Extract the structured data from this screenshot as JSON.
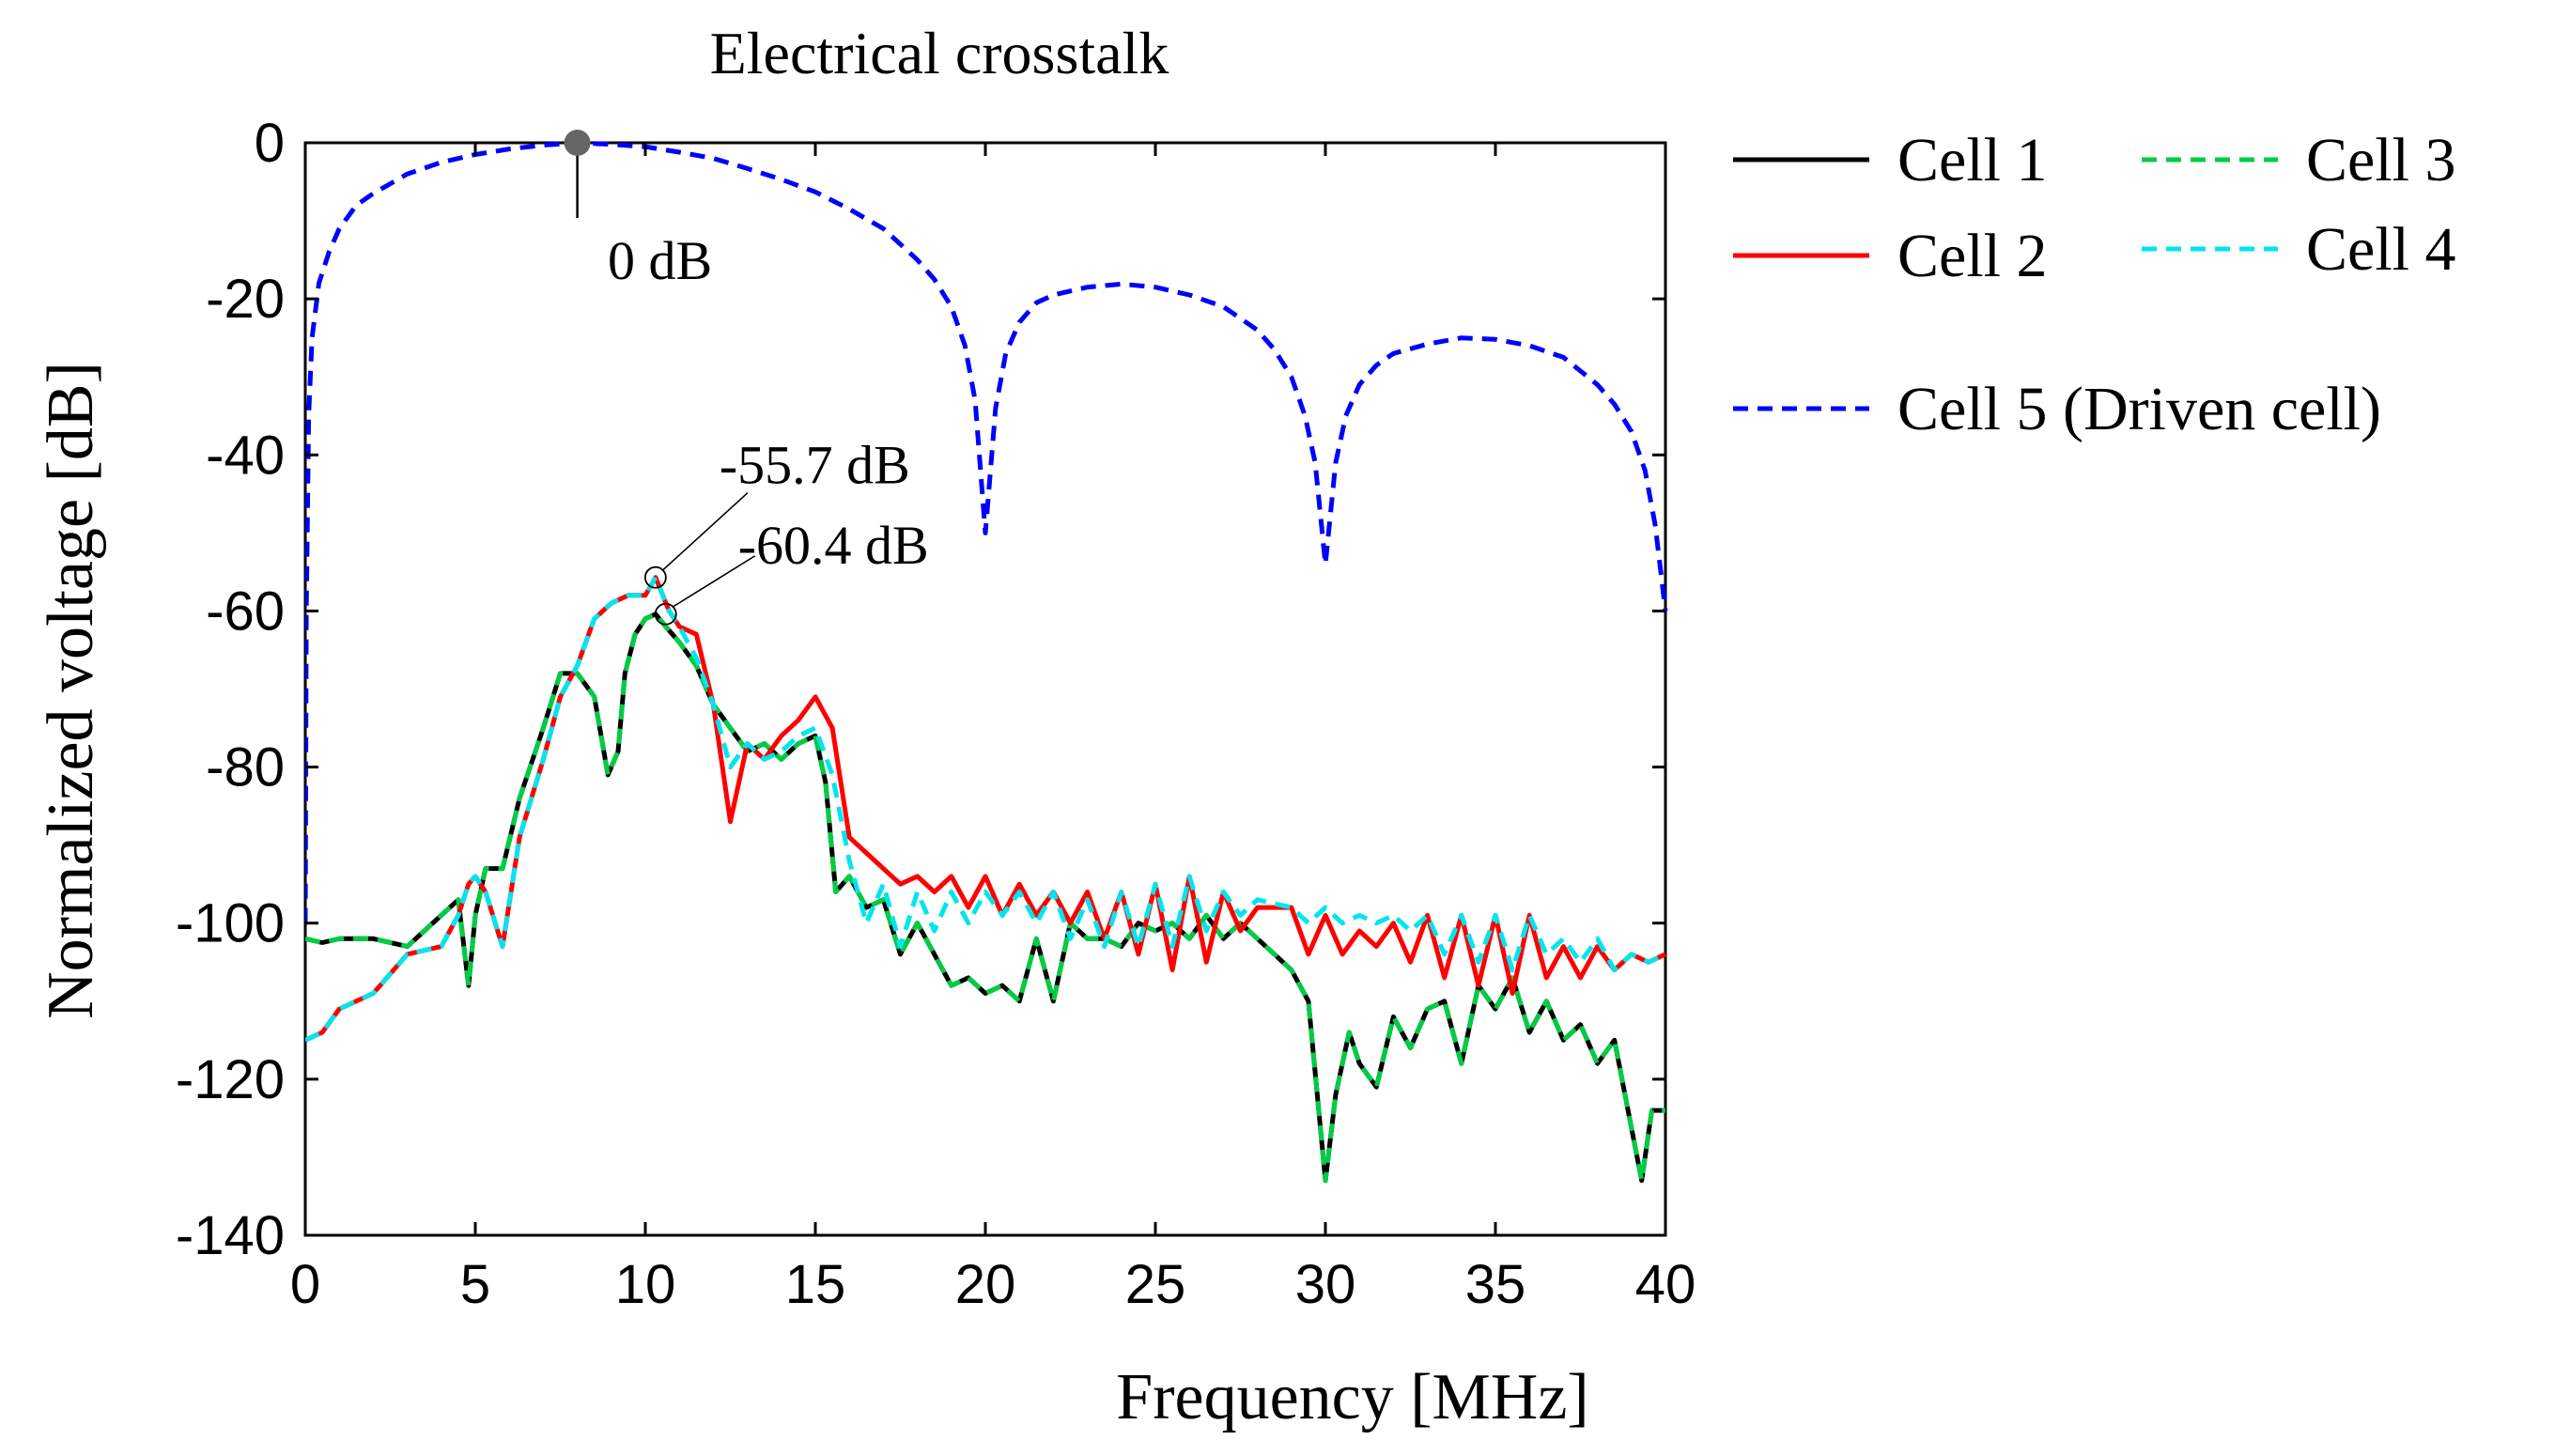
{
  "chart_data": {
    "type": "line",
    "title": "Electrical crosstalk",
    "xlabel": "Frequency [MHz]",
    "ylabel": "Normalized voltage [dB]",
    "xlim": [
      0,
      40
    ],
    "ylim": [
      -140,
      0
    ],
    "x_ticks": [
      0,
      5,
      10,
      15,
      20,
      25,
      30,
      35,
      40
    ],
    "y_ticks": [
      0,
      -20,
      -40,
      -60,
      -80,
      -100,
      -120,
      -140
    ],
    "x_tick_labels": [
      "0",
      "5",
      "10",
      "15",
      "20",
      "25",
      "30",
      "35",
      "40"
    ],
    "y_tick_labels": [
      "0",
      "-20",
      "-40",
      "-60",
      "-80",
      "-100",
      "-120",
      "-140"
    ],
    "grid": false,
    "legend_position": "right-outside",
    "series": [
      {
        "name": "Cell 1",
        "color": "#000000",
        "style": "solid",
        "x": [
          0,
          0.5,
          1,
          2,
          3,
          4,
          4.5,
          4.8,
          5.0,
          5.3,
          5.8,
          6.3,
          7.0,
          7.5,
          8.0,
          8.5,
          8.9,
          9.2,
          9.4,
          9.7,
          10.0,
          10.3,
          10.6,
          11.0,
          11.5,
          12.0,
          12.5,
          13.0,
          13.5,
          14.0,
          14.5,
          15.0,
          15.3,
          15.6,
          16.0,
          16.5,
          17.0,
          17.5,
          18.0,
          18.5,
          19.0,
          19.5,
          20.0,
          20.5,
          21.0,
          21.5,
          22.0,
          22.5,
          23.0,
          23.5,
          24.0,
          24.5,
          25.0,
          25.5,
          26.0,
          26.5,
          27.0,
          27.5,
          28.0,
          28.5,
          29.0,
          29.5,
          30.0,
          30.3,
          30.7,
          31.0,
          31.5,
          32.0,
          32.5,
          33.0,
          33.5,
          34.0,
          34.5,
          35.0,
          35.5,
          36.0,
          36.5,
          37.0,
          37.5,
          38.0,
          38.5,
          38.9,
          39.3,
          39.6,
          40.0
        ],
        "y": [
          -102,
          -102.5,
          -102,
          -102,
          -103,
          -99,
          -97,
          -108,
          -99,
          -93,
          -93,
          -84,
          -75,
          -68,
          -68,
          -71,
          -81,
          -78,
          -68,
          -63,
          -61,
          -60.4,
          -62,
          -64,
          -67,
          -72,
          -75,
          -78,
          -77,
          -79,
          -77,
          -76,
          -82,
          -96,
          -94,
          -98,
          -97,
          -104,
          -100,
          -104,
          -108,
          -107,
          -109,
          -108,
          -110,
          -102,
          -110,
          -100,
          -102,
          -102,
          -103,
          -100,
          -101,
          -100,
          -102,
          -99,
          -102,
          -100,
          -102,
          -104,
          -106,
          -110,
          -133,
          -122,
          -114,
          -118,
          -121,
          -112,
          -116,
          -111,
          -110,
          -118,
          -108,
          -111,
          -107,
          -114,
          -110,
          -115,
          -113,
          -118,
          -115,
          -124,
          -133,
          -124,
          -124
        ]
      },
      {
        "name": "Cell 2",
        "color": "#ff0000",
        "style": "solid",
        "x": [
          0,
          0.5,
          1,
          2,
          3,
          4,
          4.5,
          4.8,
          5.0,
          5.3,
          5.8,
          6.3,
          7.0,
          7.5,
          8.0,
          8.5,
          9.0,
          9.5,
          10.0,
          10.3,
          10.7,
          11.0,
          11.5,
          12.0,
          12.5,
          13.0,
          13.5,
          14.0,
          14.5,
          15.0,
          15.5,
          16.0,
          16.5,
          17.0,
          17.5,
          18.0,
          18.5,
          19.0,
          19.5,
          20.0,
          20.5,
          21.0,
          21.5,
          22.0,
          22.5,
          23.0,
          23.5,
          24.0,
          24.5,
          25.0,
          25.5,
          26.0,
          26.5,
          27.0,
          27.5,
          28.0,
          29.0,
          29.5,
          30.0,
          30.5,
          31.0,
          31.5,
          32.0,
          32.5,
          33.0,
          33.5,
          34.0,
          34.5,
          35.0,
          35.5,
          36.0,
          36.5,
          37.0,
          37.5,
          38.0,
          38.5,
          39.0,
          39.5,
          40.0
        ],
        "y": [
          -115,
          -114,
          -111,
          -109,
          -104,
          -103,
          -99,
          -95,
          -94,
          -96,
          -103,
          -89,
          -79,
          -71,
          -67,
          -61,
          -59,
          -58,
          -58,
          -55.7,
          -60,
          -62,
          -63,
          -72,
          -87,
          -77,
          -79,
          -76,
          -74,
          -71,
          -75,
          -89,
          -91,
          -93,
          -95,
          -94,
          -96,
          -94,
          -98,
          -94,
          -99,
          -95,
          -99,
          -96,
          -100,
          -96,
          -102,
          -96,
          -104,
          -95,
          -106,
          -94,
          -105,
          -96,
          -101,
          -98,
          -98,
          -104,
          -99,
          -104,
          -101,
          -103,
          -100,
          -105,
          -99,
          -107,
          -99,
          -108,
          -99,
          -109,
          -99,
          -107,
          -103,
          -107,
          -103,
          -106,
          -104,
          -105,
          -104
        ]
      },
      {
        "name": "Cell 3",
        "color": "#00cc44",
        "style": "dashed",
        "x": [
          0,
          0.5,
          1,
          2,
          3,
          4,
          4.5,
          4.8,
          5.0,
          5.3,
          5.8,
          6.3,
          7.0,
          7.5,
          8.0,
          8.5,
          8.9,
          9.2,
          9.4,
          9.7,
          10.0,
          10.3,
          10.6,
          11.0,
          11.5,
          12.0,
          12.5,
          13.0,
          13.5,
          14.0,
          14.5,
          15.0,
          15.3,
          15.6,
          16.0,
          16.5,
          17.0,
          17.5,
          18.0,
          18.5,
          19.0,
          19.5,
          20.0,
          20.5,
          21.0,
          21.5,
          22.0,
          22.5,
          23.0,
          23.5,
          24.0,
          24.5,
          25.0,
          25.5,
          26.0,
          26.5,
          27.0,
          27.5,
          28.0,
          28.5,
          29.0,
          29.5,
          30.0,
          30.3,
          30.7,
          31.0,
          31.5,
          32.0,
          32.5,
          33.0,
          33.5,
          34.0,
          34.5,
          35.0,
          35.5,
          36.0,
          36.5,
          37.0,
          37.5,
          38.0,
          38.5,
          38.9,
          39.3,
          39.6,
          40.0
        ],
        "y": [
          -102,
          -102.5,
          -102,
          -102,
          -103,
          -99,
          -97,
          -108,
          -99,
          -93,
          -93,
          -84,
          -75,
          -68,
          -68,
          -71,
          -81,
          -78,
          -68,
          -63,
          -61,
          -60.4,
          -62,
          -64,
          -67,
          -72,
          -75,
          -78,
          -77,
          -79,
          -77,
          -76,
          -82,
          -96,
          -94,
          -98,
          -97,
          -104,
          -100,
          -104,
          -108,
          -107,
          -109,
          -108,
          -110,
          -102,
          -110,
          -100,
          -102,
          -102,
          -103,
          -100,
          -101,
          -100,
          -102,
          -99,
          -102,
          -100,
          -102,
          -104,
          -106,
          -110,
          -133,
          -122,
          -114,
          -118,
          -121,
          -112,
          -116,
          -111,
          -110,
          -118,
          -108,
          -111,
          -107,
          -114,
          -110,
          -115,
          -113,
          -118,
          -115,
          -124,
          -133,
          -124,
          -124
        ]
      },
      {
        "name": "Cell 4",
        "color": "#00e5ee",
        "style": "dashed",
        "x": [
          0,
          0.5,
          1,
          2,
          3,
          4,
          4.5,
          4.8,
          5.0,
          5.3,
          5.8,
          6.3,
          7.0,
          7.5,
          8.0,
          8.5,
          9.0,
          9.5,
          10.0,
          10.3,
          10.7,
          11.0,
          11.5,
          12.0,
          12.5,
          13.0,
          13.5,
          14.0,
          14.5,
          15.0,
          15.5,
          16.0,
          16.5,
          17.0,
          17.5,
          18.0,
          18.5,
          19.0,
          19.5,
          20.0,
          20.5,
          21.0,
          21.5,
          22.0,
          22.5,
          23.0,
          23.5,
          24.0,
          24.5,
          25.0,
          25.5,
          26.0,
          26.5,
          27.0,
          27.5,
          28.0,
          29.0,
          29.5,
          30.0,
          30.5,
          31.0,
          31.5,
          32.0,
          32.5,
          33.0,
          33.5,
          34.0,
          34.5,
          35.0,
          35.5,
          36.0,
          36.5,
          37.0,
          37.5,
          38.0,
          38.5,
          39.0,
          39.5,
          40.0
        ],
        "y": [
          -115,
          -114,
          -111,
          -109,
          -104,
          -103,
          -99,
          -95,
          -94,
          -96,
          -103,
          -89,
          -79,
          -71,
          -67,
          -61,
          -59,
          -58,
          -58,
          -55.7,
          -60,
          -62,
          -66,
          -72,
          -80,
          -77,
          -79,
          -78,
          -76,
          -75,
          -81,
          -92,
          -100,
          -95,
          -103,
          -96,
          -101,
          -96,
          -100,
          -96,
          -99,
          -96,
          -100,
          -96,
          -102,
          -97,
          -103,
          -96,
          -103,
          -95,
          -103,
          -94,
          -101,
          -96,
          -99,
          -97,
          -98,
          -100,
          -98,
          -100,
          -99,
          -100,
          -99,
          -101,
          -99,
          -104,
          -99,
          -105,
          -99,
          -106,
          -99,
          -104,
          -102,
          -105,
          -102,
          -106,
          -104,
          -105,
          -104
        ]
      },
      {
        "name": "Cell 5 (Driven cell)",
        "color": "#0000ff",
        "style": "dashed",
        "x": [
          0,
          0.03,
          0.1,
          0.2,
          0.4,
          0.7,
          1,
          1.5,
          2,
          3,
          4,
          5,
          6,
          7,
          8,
          9,
          10,
          11,
          12,
          13,
          14,
          15,
          16,
          17,
          18,
          18.5,
          19,
          19.4,
          19.7,
          20.0,
          20.3,
          20.6,
          21.0,
          21.5,
          22,
          23,
          24,
          25,
          26,
          27,
          28,
          28.5,
          29,
          29.4,
          29.7,
          30.0,
          30.3,
          30.6,
          31.0,
          31.5,
          32,
          33,
          34,
          35,
          36,
          37,
          38,
          38.5,
          39,
          39.4,
          39.7,
          40.0
        ],
        "y": [
          -100,
          -60,
          -35,
          -25,
          -18,
          -14,
          -11,
          -8,
          -6.5,
          -4,
          -2.5,
          -1.5,
          -0.8,
          -0.3,
          0,
          -0.2,
          -0.5,
          -1.2,
          -2,
          -3.3,
          -4.7,
          -6.3,
          -8.5,
          -11,
          -15,
          -17.5,
          -21,
          -26,
          -33,
          -50,
          -34,
          -27,
          -23,
          -20.5,
          -19.5,
          -18.5,
          -18.1,
          -18.5,
          -19.5,
          -21,
          -24,
          -26.5,
          -30,
          -35,
          -41,
          -54,
          -41,
          -35,
          -31,
          -28.5,
          -27,
          -25.8,
          -25,
          -25.2,
          -26,
          -27.5,
          -31,
          -33.5,
          -37,
          -42,
          -49,
          -60
        ]
      }
    ],
    "annotations": [
      {
        "text": "0 dB",
        "x": 8.0,
        "y": 0
      },
      {
        "text": "-55.7 dB",
        "x": 10.3,
        "y": -55.7
      },
      {
        "text": "-60.4 dB",
        "x": 10.6,
        "y": -60.4
      }
    ]
  }
}
